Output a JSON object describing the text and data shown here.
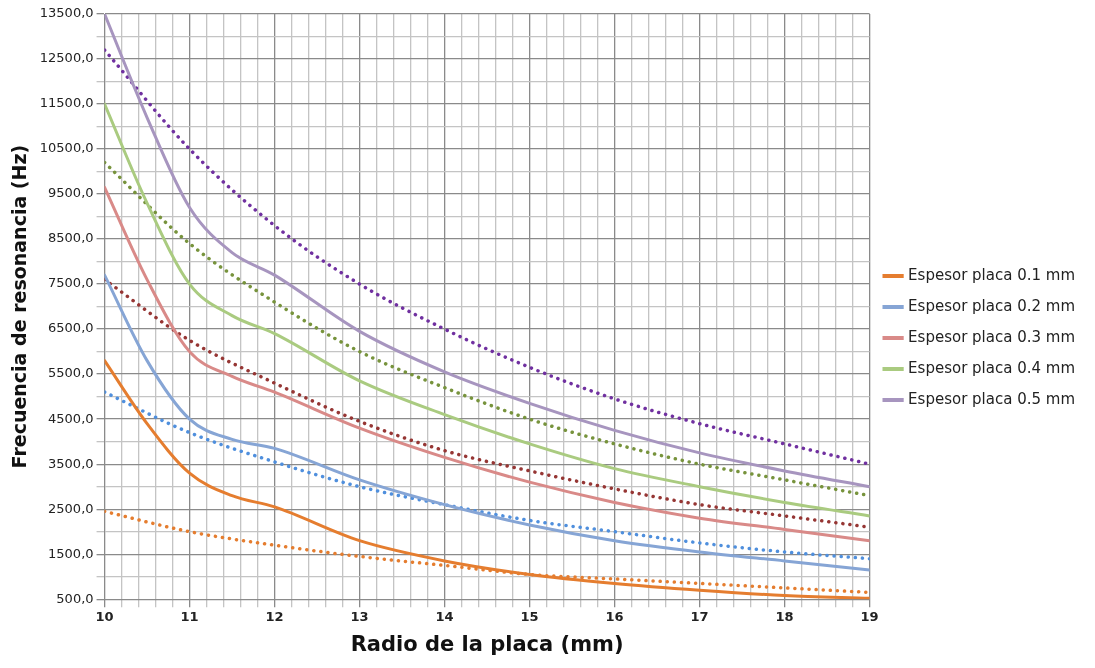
{
  "chart_data": {
    "type": "line",
    "xlabel": "Radio de la placa (mm)",
    "ylabel": "Frecuencia de resonancia (Hz)",
    "xlim": [
      10,
      19
    ],
    "xticks": [
      10,
      {
        "value": 10.2,
        "label": null
      },
      {
        "value": 10.4,
        "label": null
      },
      {
        "value": 10.6,
        "label": null
      },
      {
        "value": 10.8,
        "label": null
      },
      11,
      {
        "value": 11.2,
        "label": null
      },
      {
        "value": 11.4,
        "label": null
      },
      {
        "value": 11.6,
        "label": null
      },
      {
        "value": 11.8,
        "label": null
      },
      12,
      {
        "value": 12.2,
        "label": null
      },
      {
        "value": 12.4,
        "label": null
      },
      {
        "value": 12.6,
        "label": null
      },
      {
        "value": 12.8,
        "label": null
      },
      13,
      {
        "value": 13.2,
        "label": null
      },
      {
        "value": 13.4,
        "label": null
      },
      {
        "value": 13.6,
        "label": null
      },
      {
        "value": 13.8,
        "label": null
      },
      14,
      {
        "value": 14.2,
        "label": null
      },
      {
        "value": 14.4,
        "label": null
      },
      {
        "value": 14.6,
        "label": null
      },
      {
        "value": 14.8,
        "label": null
      },
      15,
      {
        "value": 15.2,
        "label": null
      },
      {
        "value": 15.4,
        "label": null
      },
      {
        "value": 15.6,
        "label": null
      },
      {
        "value": 15.8,
        "label": null
      },
      16,
      {
        "value": 16.2,
        "label": null
      },
      {
        "value": 16.4,
        "label": null
      },
      {
        "value": 16.6,
        "label": null
      },
      {
        "value": 16.8,
        "label": null
      },
      17,
      {
        "value": 17.2,
        "label": null
      },
      {
        "value": 17.4,
        "label": null
      },
      {
        "value": 17.6,
        "label": null
      },
      {
        "value": 17.8,
        "label": null
      },
      18,
      {
        "value": 18.2,
        "label": null
      },
      {
        "value": 18.4,
        "label": null
      },
      {
        "value": 18.6,
        "label": null
      },
      {
        "value": 18.8,
        "label": null
      },
      19
    ],
    "ylim": [
      500,
      13500
    ],
    "yticks": [
      {
        "value": 500,
        "label": "500,0"
      },
      {
        "value": 1000,
        "label": null
      },
      {
        "value": 1500,
        "label": "1500,0"
      },
      {
        "value": 2000,
        "label": null
      },
      {
        "value": 2500,
        "label": "2500,0"
      },
      {
        "value": 3000,
        "label": null
      },
      {
        "value": 3500,
        "label": "3500,0"
      },
      {
        "value": 4000,
        "label": null
      },
      {
        "value": 4500,
        "label": "4500,0"
      },
      {
        "value": 5000,
        "label": null
      },
      {
        "value": 5500,
        "label": "5500,0"
      },
      {
        "value": 6000,
        "label": null
      },
      {
        "value": 6500,
        "label": "6500,0"
      },
      {
        "value": 7000,
        "label": null
      },
      {
        "value": 7500,
        "label": "7500,0"
      },
      {
        "value": 8000,
        "label": null
      },
      {
        "value": 8500,
        "label": "8500,0"
      },
      {
        "value": 9000,
        "label": null
      },
      {
        "value": 9500,
        "label": "9500,0"
      },
      {
        "value": 10000,
        "label": null
      },
      {
        "value": 10500,
        "label": "10500,0"
      },
      {
        "value": 11000,
        "label": null
      },
      {
        "value": 11500,
        "label": "11500,0"
      },
      {
        "value": 12000,
        "label": null
      },
      {
        "value": 12500,
        "label": "12500,0"
      },
      {
        "value": 13000,
        "label": null
      },
      {
        "value": 13500,
        "label": "13500,0"
      }
    ],
    "grid": true,
    "legend": "right",
    "marker": "none",
    "series": [
      {
        "name": "Espesor placa 0.1 mm",
        "color": "#e57d2f",
        "line_style": "solid",
        "x": [
          10,
          10.5,
          11,
          11.5,
          12,
          13,
          14,
          15,
          16,
          17,
          18,
          19
        ],
        "values": [
          5800,
          4400,
          3300,
          2800,
          2550,
          1800,
          1350,
          1050,
          850,
          700,
          580,
          520
        ]
      },
      {
        "name": "Espesor placa 0.2 mm",
        "color": "#86a5d5",
        "line_style": "solid",
        "x": [
          10,
          10.5,
          11,
          11.5,
          12,
          13,
          14,
          15,
          16,
          17,
          18,
          19
        ],
        "values": [
          7700,
          5800,
          4500,
          4050,
          3850,
          3150,
          2600,
          2150,
          1800,
          1550,
          1350,
          1150
        ]
      },
      {
        "name": "Espesor placa 0.3 mm",
        "color": "#d98a88",
        "line_style": "solid",
        "x": [
          10,
          10.5,
          11,
          11.5,
          12,
          13,
          14,
          15,
          16,
          17,
          18,
          19
        ],
        "values": [
          9650,
          7600,
          6000,
          5450,
          5100,
          4300,
          3650,
          3100,
          2650,
          2300,
          2050,
          1800
        ]
      },
      {
        "name": "Espesor placa 0.4 mm",
        "color": "#aacb80",
        "line_style": "solid",
        "x": [
          10,
          10.5,
          11,
          11.5,
          12,
          13,
          14,
          15,
          16,
          17,
          18,
          19
        ],
        "values": [
          11500,
          9300,
          7500,
          6800,
          6400,
          5350,
          4600,
          3950,
          3400,
          3000,
          2650,
          2350
        ]
      },
      {
        "name": "Espesor placa 0.5 mm",
        "color": "#a795bf",
        "line_style": "solid",
        "x": [
          10,
          10.5,
          11,
          11.5,
          12,
          13,
          14,
          15,
          16,
          17,
          18,
          19
        ],
        "values": [
          13500,
          11200,
          9200,
          8200,
          7700,
          6450,
          5550,
          4850,
          4250,
          3750,
          3350,
          3000
        ]
      },
      {
        "color": "#e57d2f",
        "line_style": "dotted",
        "x": [
          10,
          11,
          12,
          13,
          14,
          15,
          16,
          17,
          18,
          19
        ],
        "values": [
          2450,
          2000,
          1700,
          1450,
          1250,
          1050,
          950,
          850,
          750,
          650
        ]
      },
      {
        "color": "#4f8fdd",
        "line_style": "dotted",
        "x": [
          10,
          11,
          12,
          13,
          14,
          15,
          16,
          17,
          18,
          19
        ],
        "values": [
          5100,
          4200,
          3550,
          3000,
          2600,
          2250,
          2000,
          1750,
          1550,
          1400
        ]
      },
      {
        "color": "#963634",
        "line_style": "dotted",
        "x": [
          10,
          11,
          12,
          13,
          14,
          15,
          16,
          17,
          18,
          19
        ],
        "values": [
          7600,
          6250,
          5300,
          4450,
          3800,
          3350,
          2950,
          2600,
          2350,
          2100
        ]
      },
      {
        "color": "#77933c",
        "line_style": "dotted",
        "x": [
          10,
          11,
          12,
          13,
          14,
          15,
          16,
          17,
          18,
          19
        ],
        "values": [
          10200,
          8400,
          7100,
          6000,
          5200,
          4500,
          3950,
          3500,
          3150,
          2800
        ]
      },
      {
        "color": "#7030a0",
        "line_style": "dotted",
        "x": [
          10,
          11,
          12,
          13,
          14,
          15,
          16,
          17,
          18,
          19
        ],
        "values": [
          12700,
          10500,
          8800,
          7500,
          6500,
          5650,
          4950,
          4400,
          3950,
          3500
        ]
      }
    ]
  }
}
